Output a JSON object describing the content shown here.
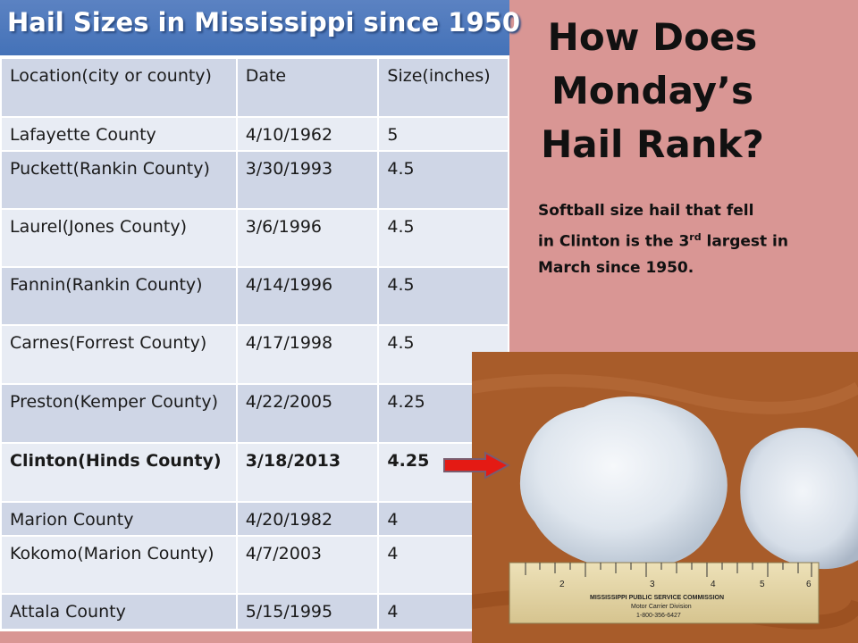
{
  "table": {
    "title": "Hail Sizes in Mississippi since 1950",
    "headers": [
      "Location(city or county)",
      "Date",
      "Size(inches)"
    ],
    "rows": [
      [
        "Lafayette County",
        "4/10/1962",
        "5"
      ],
      [
        "Puckett(Rankin County)",
        "3/30/1993",
        "4.5"
      ],
      [
        "Laurel(Jones County)",
        "3/6/1996",
        "4.5"
      ],
      [
        "Fannin(Rankin County)",
        "4/14/1996",
        "4.5"
      ],
      [
        "Carnes(Forrest County)",
        "4/17/1998",
        "4.5"
      ],
      [
        "Preston(Kemper County)",
        "4/22/2005",
        "4.25"
      ],
      [
        "Clinton(Hinds County)",
        "3/18/2013",
        "4.25"
      ],
      [
        "Marion County",
        "4/20/1982",
        "4"
      ],
      [
        "Kokomo(Marion County)",
        "4/7/2003",
        "4"
      ],
      [
        "Attala County",
        "5/15/1995",
        "4"
      ]
    ],
    "highlight_row_index": 6
  },
  "headline": {
    "line1": "How Does",
    "line2": "Monday’s",
    "line3": "Hail Rank?"
  },
  "caption": {
    "line1": "Softball size hail that fell",
    "line2_pre": "in Clinton is the 3",
    "line2_sup": "rd",
    "line2_post": " largest in",
    "line3": "March since 1950."
  },
  "photo": {
    "ruler_line1": "MISSISSIPPI PUBLIC SERVICE COMMISSION",
    "ruler_line2": "Motor Carrier Division",
    "ruler_line3": "1-800-356-6427",
    "ruler_numbers": [
      "2",
      "3",
      "4",
      "5",
      "6"
    ]
  },
  "colors": {
    "background": "#d99694",
    "banner": "#4f81bd",
    "row_dark": "#cfd6e6",
    "row_light": "#e8ecf4",
    "arrow": "#e41a14"
  }
}
